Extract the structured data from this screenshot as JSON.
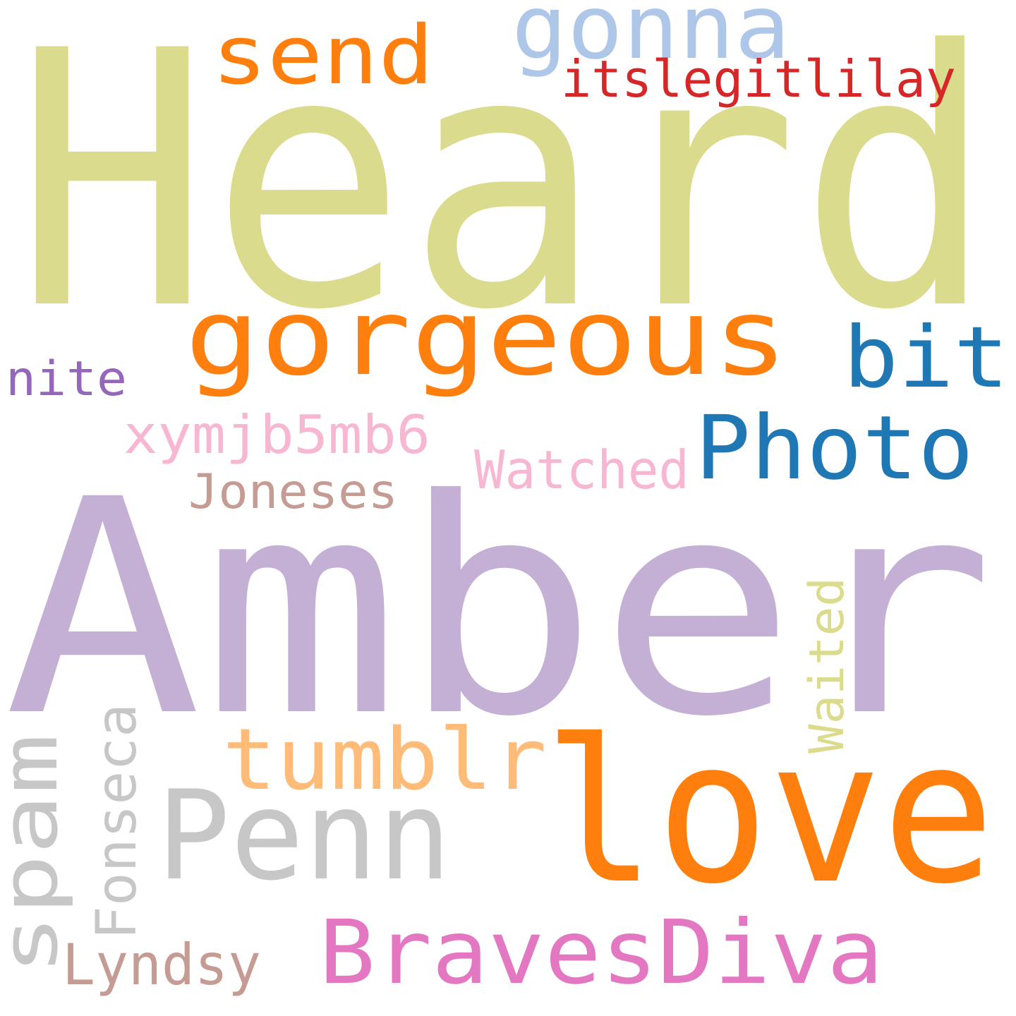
{
  "words": [
    {
      "id": "heard",
      "text": "Heard",
      "color": "#dbdb8d",
      "vertical": false
    },
    {
      "id": "amber",
      "text": "Amber",
      "color": "#c5b0d5",
      "vertical": false
    },
    {
      "id": "gorgeous",
      "text": "gorgeous",
      "color": "#ff7f0e",
      "vertical": false
    },
    {
      "id": "love",
      "text": "love",
      "color": "#ff7f0e",
      "vertical": false
    },
    {
      "id": "penn",
      "text": "Penn",
      "color": "#c7c7c7",
      "vertical": false
    },
    {
      "id": "photo",
      "text": "Photo",
      "color": "#1f77b4",
      "vertical": false
    },
    {
      "id": "bit",
      "text": "bit",
      "color": "#1f77b4",
      "vertical": false
    },
    {
      "id": "bravesdiva",
      "text": "BravesDiva",
      "color": "#e377c2",
      "vertical": false
    },
    {
      "id": "tumblr",
      "text": "tumblr",
      "color": "#ffbb78",
      "vertical": false
    },
    {
      "id": "spam",
      "text": "spam",
      "color": "#c7c7c7",
      "vertical": true
    },
    {
      "id": "send",
      "text": "send",
      "color": "#ff7f0e",
      "vertical": false
    },
    {
      "id": "gonna",
      "text": "gonna",
      "color": "#aec7e8",
      "vertical": false
    },
    {
      "id": "xymjb5mb6",
      "text": "xymjb5mb6",
      "color": "#f7b6d2",
      "vertical": false
    },
    {
      "id": "watched",
      "text": "Watched",
      "color": "#f7b6d2",
      "vertical": false
    },
    {
      "id": "joneses",
      "text": "Joneses",
      "color": "#c49c94",
      "vertical": false
    },
    {
      "id": "fonseca",
      "text": "Fonseca",
      "color": "#c7c7c7",
      "vertical": true
    },
    {
      "id": "waited",
      "text": "Waited",
      "color": "#dbdb8d",
      "vertical": true
    },
    {
      "id": "lyndsy",
      "text": "Lyndsy",
      "color": "#c49c94",
      "vertical": false
    },
    {
      "id": "itslegitlilay",
      "text": "itslegitlilay",
      "color": "#d62728",
      "vertical": false
    },
    {
      "id": "nite",
      "text": "nite",
      "color": "#9467bd",
      "vertical": false
    }
  ]
}
